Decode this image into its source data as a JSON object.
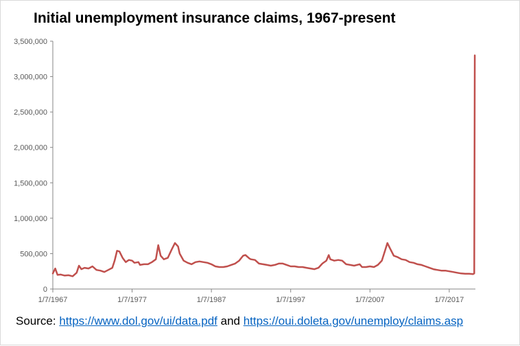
{
  "chart_data": {
    "type": "line",
    "title": "Initial unemployment insurance claims, 1967-present",
    "xlabel": "",
    "ylabel": "",
    "x_ticks": [
      "1/7/1967",
      "1/7/1977",
      "1/7/1987",
      "1/7/1997",
      "1/7/2007",
      "1/7/2017"
    ],
    "x_tick_years": [
      1967,
      1977,
      1987,
      1997,
      2007,
      2017
    ],
    "y_ticks": [
      0,
      500000,
      1000000,
      1500000,
      2000000,
      2500000,
      3000000,
      3500000
    ],
    "y_tick_labels": [
      "0",
      "500,000",
      "1,000,000",
      "1,500,000",
      "2,000,000",
      "2,500,000",
      "3,000,000",
      "3,500,000"
    ],
    "xlim": [
      1967.0,
      2020.3
    ],
    "ylim": [
      0,
      3500000
    ],
    "grid": false,
    "series": [
      {
        "color": "#c0504d",
        "points": [
          [
            1967.0,
            220000
          ],
          [
            1967.3,
            290000
          ],
          [
            1967.6,
            200000
          ],
          [
            1968.0,
            205000
          ],
          [
            1968.5,
            190000
          ],
          [
            1969.0,
            195000
          ],
          [
            1969.5,
            180000
          ],
          [
            1970.0,
            230000
          ],
          [
            1970.3,
            330000
          ],
          [
            1970.6,
            280000
          ],
          [
            1971.0,
            300000
          ],
          [
            1971.5,
            290000
          ],
          [
            1972.0,
            320000
          ],
          [
            1972.5,
            270000
          ],
          [
            1973.0,
            260000
          ],
          [
            1973.5,
            240000
          ],
          [
            1974.0,
            270000
          ],
          [
            1974.5,
            300000
          ],
          [
            1974.8,
            400000
          ],
          [
            1975.1,
            540000
          ],
          [
            1975.4,
            530000
          ],
          [
            1975.8,
            440000
          ],
          [
            1976.2,
            380000
          ],
          [
            1976.6,
            410000
          ],
          [
            1977.0,
            400000
          ],
          [
            1977.3,
            370000
          ],
          [
            1977.8,
            380000
          ],
          [
            1978.0,
            340000
          ],
          [
            1978.5,
            350000
          ],
          [
            1979.0,
            350000
          ],
          [
            1979.5,
            380000
          ],
          [
            1980.0,
            420000
          ],
          [
            1980.3,
            620000
          ],
          [
            1980.6,
            470000
          ],
          [
            1981.0,
            420000
          ],
          [
            1981.5,
            440000
          ],
          [
            1982.0,
            560000
          ],
          [
            1982.4,
            650000
          ],
          [
            1982.8,
            600000
          ],
          [
            1983.0,
            500000
          ],
          [
            1983.5,
            400000
          ],
          [
            1984.0,
            370000
          ],
          [
            1984.5,
            350000
          ],
          [
            1985.0,
            380000
          ],
          [
            1985.5,
            390000
          ],
          [
            1986.0,
            380000
          ],
          [
            1986.5,
            370000
          ],
          [
            1987.0,
            350000
          ],
          [
            1987.5,
            320000
          ],
          [
            1988.0,
            310000
          ],
          [
            1988.5,
            310000
          ],
          [
            1989.0,
            320000
          ],
          [
            1989.5,
            340000
          ],
          [
            1990.0,
            360000
          ],
          [
            1990.5,
            400000
          ],
          [
            1991.0,
            470000
          ],
          [
            1991.3,
            480000
          ],
          [
            1991.8,
            430000
          ],
          [
            1992.0,
            420000
          ],
          [
            1992.5,
            410000
          ],
          [
            1993.0,
            360000
          ],
          [
            1993.5,
            350000
          ],
          [
            1994.0,
            340000
          ],
          [
            1994.5,
            330000
          ],
          [
            1995.0,
            340000
          ],
          [
            1995.5,
            360000
          ],
          [
            1996.0,
            360000
          ],
          [
            1996.5,
            340000
          ],
          [
            1997.0,
            320000
          ],
          [
            1997.5,
            320000
          ],
          [
            1998.0,
            310000
          ],
          [
            1998.5,
            310000
          ],
          [
            1999.0,
            300000
          ],
          [
            1999.5,
            290000
          ],
          [
            2000.0,
            280000
          ],
          [
            2000.5,
            300000
          ],
          [
            2001.0,
            360000
          ],
          [
            2001.5,
            400000
          ],
          [
            2001.8,
            480000
          ],
          [
            2002.0,
            420000
          ],
          [
            2002.5,
            400000
          ],
          [
            2003.0,
            410000
          ],
          [
            2003.5,
            400000
          ],
          [
            2004.0,
            350000
          ],
          [
            2004.5,
            340000
          ],
          [
            2005.0,
            330000
          ],
          [
            2005.7,
            350000
          ],
          [
            2006.0,
            310000
          ],
          [
            2006.5,
            310000
          ],
          [
            2007.0,
            320000
          ],
          [
            2007.5,
            310000
          ],
          [
            2008.0,
            340000
          ],
          [
            2008.5,
            400000
          ],
          [
            2008.9,
            540000
          ],
          [
            2009.2,
            650000
          ],
          [
            2009.5,
            580000
          ],
          [
            2010.0,
            470000
          ],
          [
            2010.5,
            450000
          ],
          [
            2011.0,
            420000
          ],
          [
            2011.5,
            410000
          ],
          [
            2012.0,
            380000
          ],
          [
            2012.5,
            370000
          ],
          [
            2013.0,
            350000
          ],
          [
            2013.5,
            340000
          ],
          [
            2014.0,
            320000
          ],
          [
            2014.5,
            300000
          ],
          [
            2015.0,
            280000
          ],
          [
            2015.5,
            270000
          ],
          [
            2016.0,
            260000
          ],
          [
            2016.5,
            260000
          ],
          [
            2017.0,
            250000
          ],
          [
            2017.5,
            240000
          ],
          [
            2018.0,
            230000
          ],
          [
            2018.5,
            220000
          ],
          [
            2019.0,
            215000
          ],
          [
            2019.5,
            215000
          ],
          [
            2020.0,
            210000
          ],
          [
            2020.15,
            220000
          ],
          [
            2020.22,
            3300000
          ]
        ]
      }
    ],
    "source": {
      "prefix": "Source: ",
      "link1": "https://www.dol.gov/ui/data.pdf",
      "middle": " and ",
      "link2": "https://oui.doleta.gov/unemploy/claims.asp"
    }
  }
}
